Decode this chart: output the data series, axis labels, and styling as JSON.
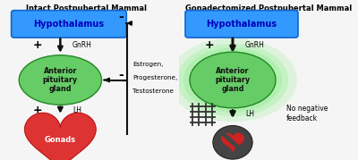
{
  "bg_color": "#f5f5f5",
  "left_title": "Intact Postpubertal Mammal",
  "right_title": "Gonadectomized Postpubertal Mammal",
  "hypothalamus_color": "#3399ff",
  "hypothalamus_text": "Hypothalamus",
  "hypothalamus_text_color": "#0000bb",
  "pituitary_color": "#66cc66",
  "pituitary_glow_color": "#99ee99",
  "pituitary_text": "Anterior\npituitary\ngland",
  "gonad_color": "#dd3333",
  "gonad_text": "Gonads",
  "gnrh_label": "GnRH",
  "lh_label": "LH",
  "feedback_labels": [
    "Estrogen,",
    "Progesterone,",
    "Testosterone"
  ],
  "no_feedback_label": "No negative\nfeedback",
  "arrow_color": "#111111",
  "bracket_color": "#111111"
}
